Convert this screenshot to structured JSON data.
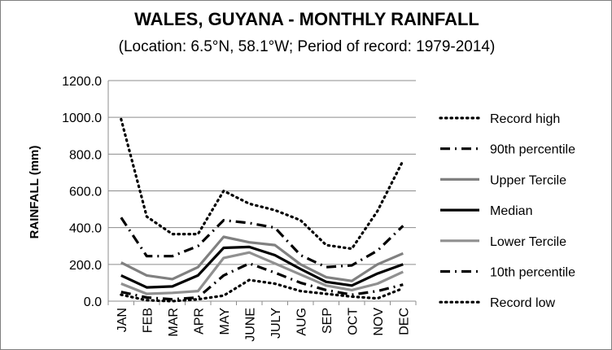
{
  "chart_data": {
    "type": "line",
    "title": "WALES, GUYANA - MONTHLY RAINFALL",
    "subtitle": "(Location: 6.5°N, 58.1°W; Period of record: 1979-2014)",
    "xlabel": "",
    "ylabel": "RAINFALL (mm)",
    "ylim": [
      0,
      1200
    ],
    "yticks": [
      "0.0",
      "200.0",
      "400.0",
      "600.0",
      "800.0",
      "1000.0",
      "1200.0"
    ],
    "grid": true,
    "legend_position": "right",
    "categories": [
      "JAN",
      "FEB",
      "MAR",
      "APR",
      "MAY",
      "JUNE",
      "JULY",
      "AUG",
      "SEP",
      "OCT",
      "NOV",
      "DEC"
    ],
    "series": [
      {
        "name": "Record high",
        "style": "dotted",
        "color": "#000000",
        "values": [
          990,
          460,
          365,
          365,
          600,
          530,
          495,
          440,
          305,
          285,
          490,
          765
        ]
      },
      {
        "name": "90th percentile",
        "style": "dash-dot",
        "color": "#000000",
        "values": [
          455,
          245,
          245,
          300,
          440,
          425,
          400,
          250,
          185,
          195,
          275,
          410
        ]
      },
      {
        "name": "Upper Tercile",
        "style": "solid",
        "color": "#808080",
        "values": [
          210,
          140,
          120,
          185,
          350,
          320,
          305,
          200,
          130,
          110,
          200,
          260
        ]
      },
      {
        "name": "Median",
        "style": "solid",
        "color": "#000000",
        "values": [
          140,
          75,
          80,
          140,
          290,
          295,
          250,
          175,
          105,
          85,
          150,
          200
        ]
      },
      {
        "name": "Lower Tercile",
        "style": "solid",
        "color": "#909090",
        "values": [
          95,
          40,
          45,
          55,
          235,
          265,
          205,
          145,
          85,
          60,
          95,
          160
        ]
      },
      {
        "name": "10th percentile",
        "style": "dash-dot",
        "color": "#000000",
        "values": [
          50,
          20,
          10,
          20,
          140,
          205,
          155,
          100,
          60,
          35,
          55,
          90
        ]
      },
      {
        "name": "Record low",
        "style": "dotted",
        "color": "#000000",
        "values": [
          35,
          5,
          0,
          10,
          30,
          115,
          95,
          55,
          40,
          25,
          15,
          70
        ]
      }
    ]
  }
}
